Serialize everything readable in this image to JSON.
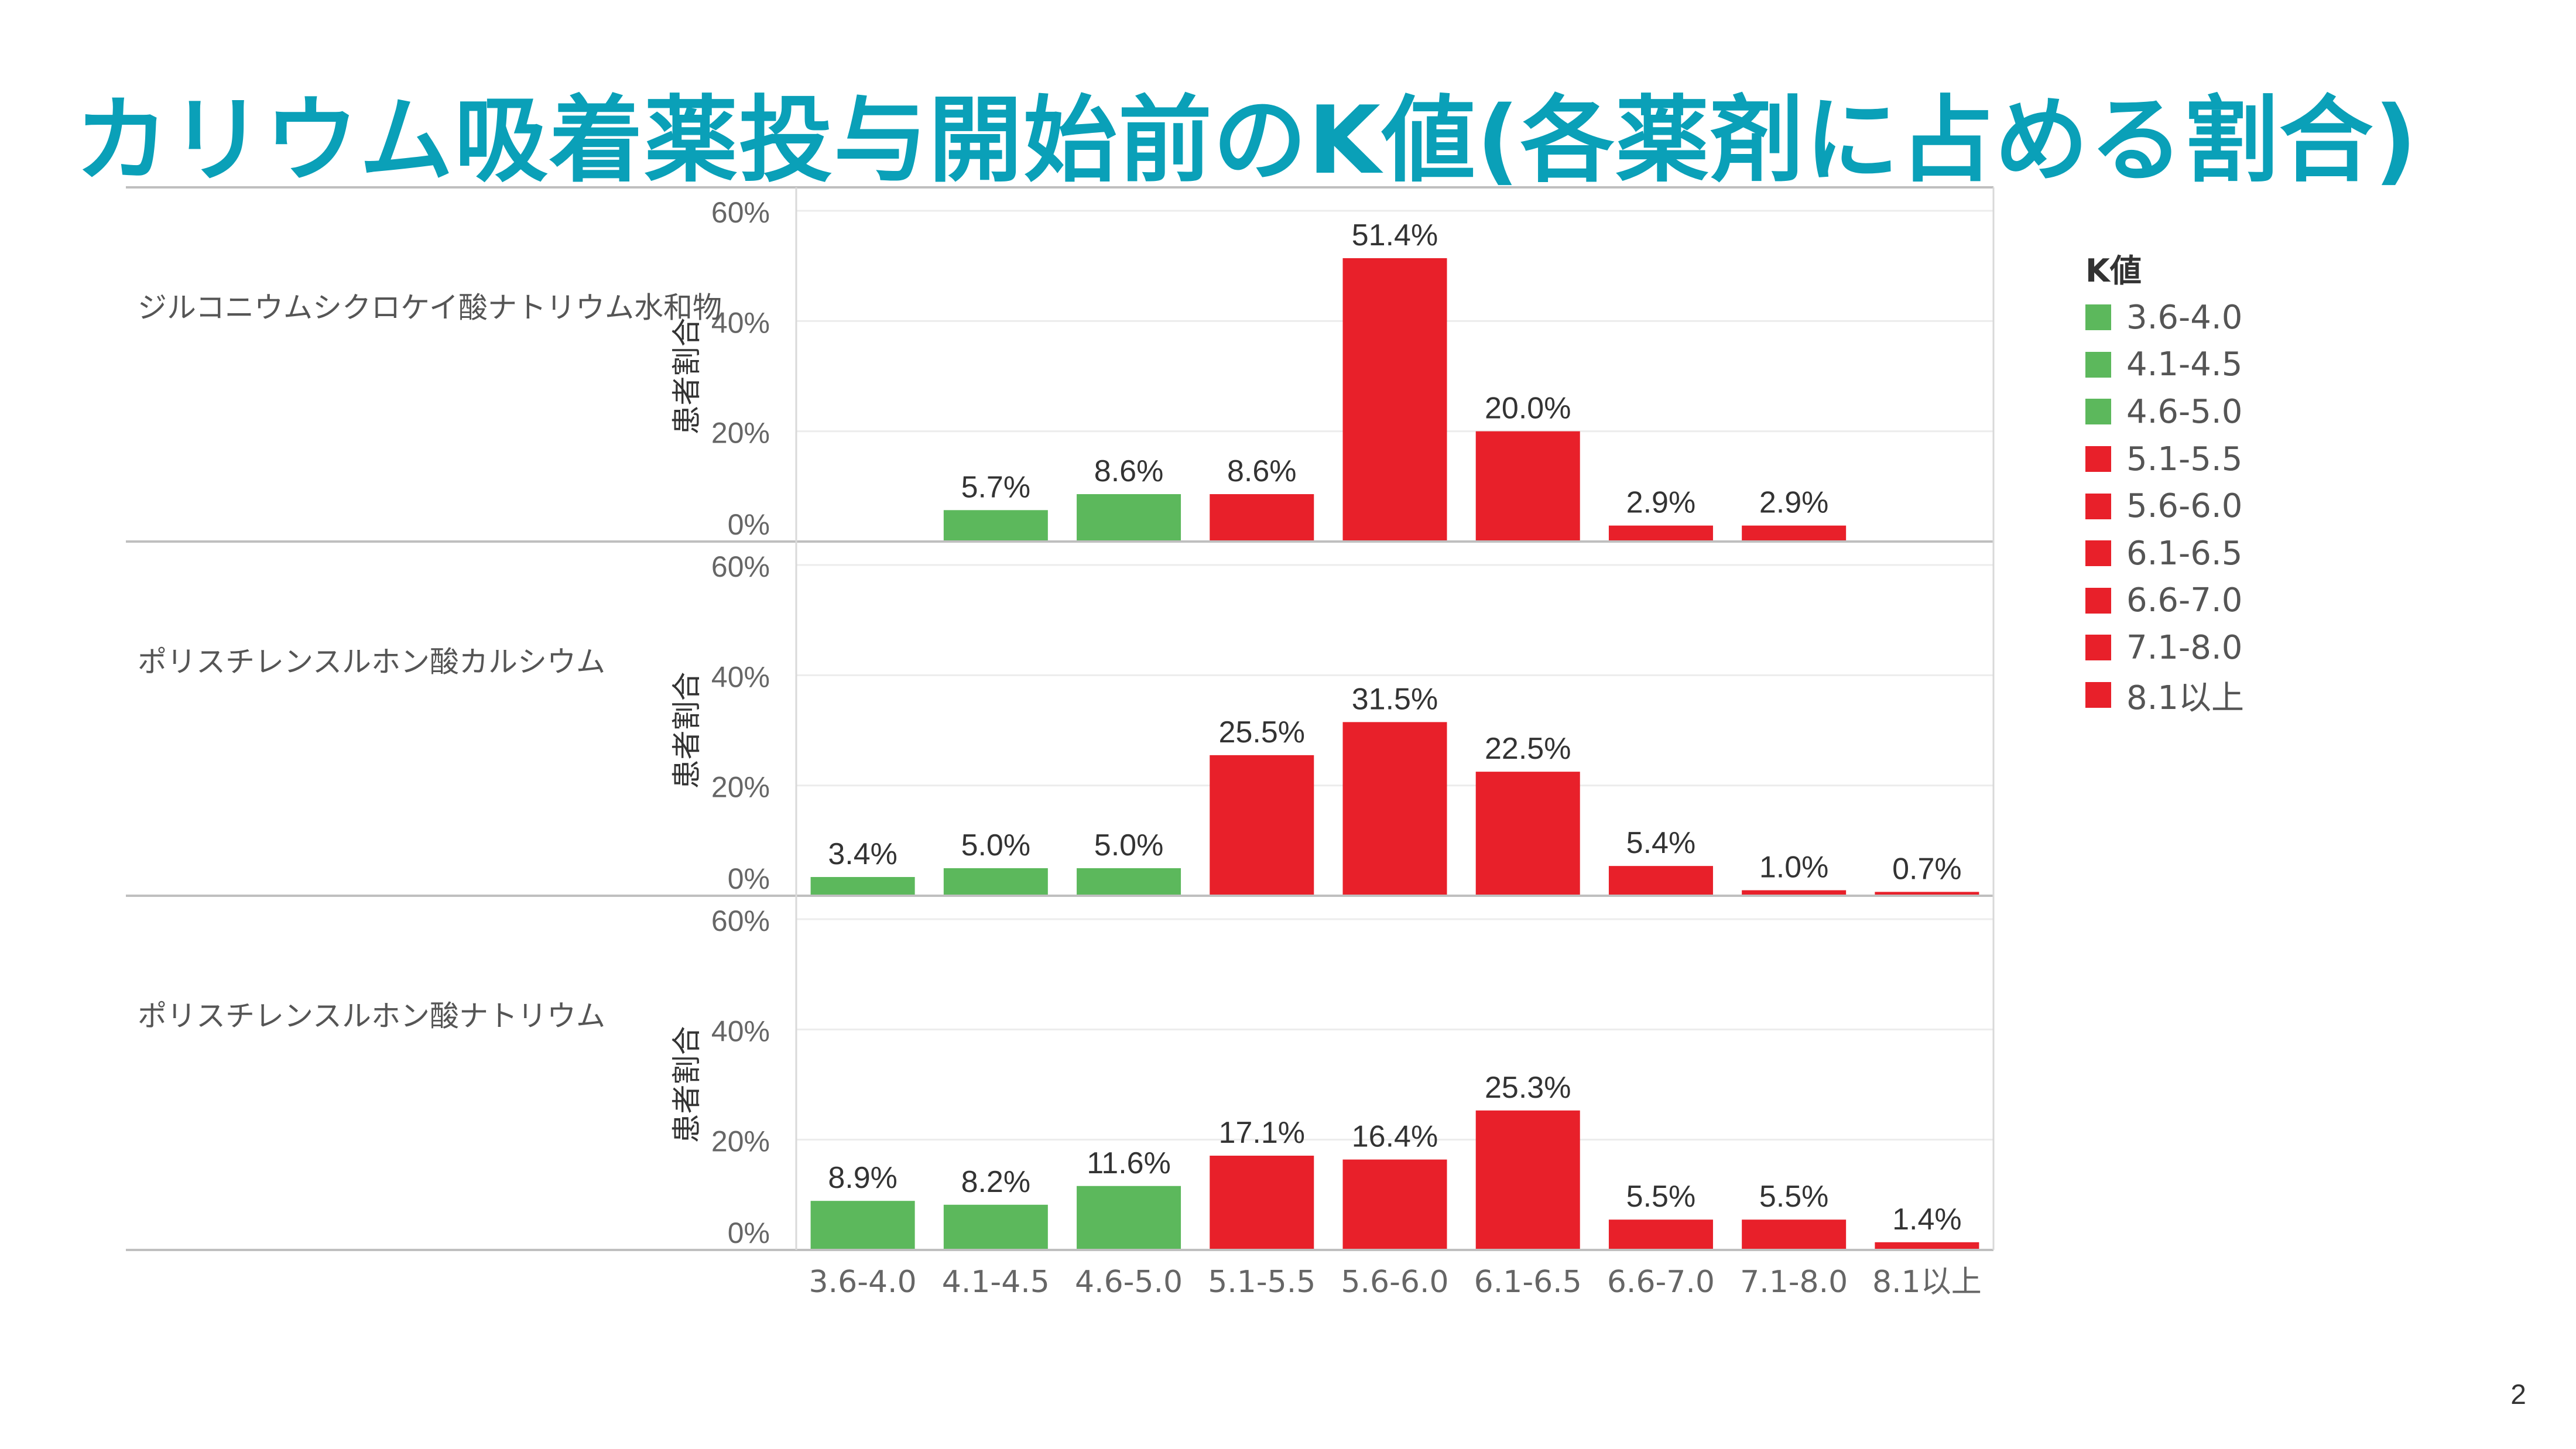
{
  "title": "カリウム吸着薬投与開始前のK値(各薬剤に占める割合)",
  "page_number": "2",
  "colors": {
    "green": "#5cb85c",
    "red": "#e8202a",
    "title": "#0aa0b8"
  },
  "legend": {
    "title": "K値",
    "items": [
      {
        "label": "3.6-4.0",
        "color": "#5cb85c"
      },
      {
        "label": "4.1-4.5",
        "color": "#5cb85c"
      },
      {
        "label": "4.6-5.0",
        "color": "#5cb85c"
      },
      {
        "label": "5.1-5.5",
        "color": "#e8202a"
      },
      {
        "label": "5.6-6.0",
        "color": "#e8202a"
      },
      {
        "label": "6.1-6.5",
        "color": "#e8202a"
      },
      {
        "label": "6.6-7.0",
        "color": "#e8202a"
      },
      {
        "label": "7.1-8.0",
        "color": "#e8202a"
      },
      {
        "label": "8.1以上",
        "color": "#e8202a"
      }
    ]
  },
  "chart_data": {
    "type": "bar",
    "categories": [
      "3.6-4.0",
      "4.1-4.5",
      "4.6-5.0",
      "5.1-5.5",
      "5.6-6.0",
      "6.1-6.5",
      "6.6-7.0",
      "7.1-8.0",
      "8.1以上"
    ],
    "category_colors": [
      "#5cb85c",
      "#5cb85c",
      "#5cb85c",
      "#e8202a",
      "#e8202a",
      "#e8202a",
      "#e8202a",
      "#e8202a",
      "#e8202a"
    ],
    "ylabel": "患者割合",
    "ylim": [
      0,
      60
    ],
    "yticks": [
      "0%",
      "20%",
      "40%",
      "60%"
    ],
    "grid": true,
    "legend_position": "right",
    "series": [
      {
        "name": "ジルコニウムシクロケイ酸ナトリウム水和物",
        "values": [
          null,
          5.7,
          8.6,
          8.6,
          51.4,
          20.0,
          2.9,
          2.9,
          null
        ],
        "labels": [
          "",
          "5.7%",
          "8.6%",
          "8.6%",
          "51.4%",
          "20.0%",
          "2.9%",
          "2.9%",
          ""
        ]
      },
      {
        "name": "ポリスチレンスルホン酸カルシウム",
        "values": [
          3.4,
          5.0,
          5.0,
          25.5,
          31.5,
          22.5,
          5.4,
          1.0,
          0.7
        ],
        "labels": [
          "3.4%",
          "5.0%",
          "5.0%",
          "25.5%",
          "31.5%",
          "22.5%",
          "5.4%",
          "1.0%",
          "0.7%"
        ]
      },
      {
        "name": "ポリスチレンスルホン酸ナトリウム",
        "values": [
          8.9,
          8.2,
          11.6,
          17.1,
          16.4,
          25.3,
          5.5,
          5.5,
          1.4
        ],
        "labels": [
          "8.9%",
          "8.2%",
          "11.6%",
          "17.1%",
          "16.4%",
          "25.3%",
          "5.5%",
          "5.5%",
          "1.4%"
        ]
      }
    ]
  }
}
